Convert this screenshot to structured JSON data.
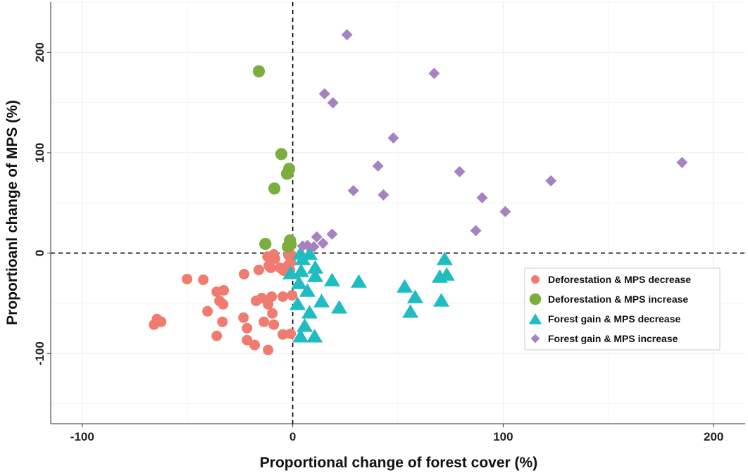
{
  "chart_data": {
    "type": "scatter",
    "xlabel": "Proportional change of forest cover (%)",
    "ylabel": "Proportioanl change of MPS (%)",
    "xlim": [
      -115,
      215
    ],
    "ylim": [
      -170,
      250
    ],
    "xticks": [
      -100,
      0,
      100,
      200
    ],
    "yticks": [
      -100,
      0,
      100,
      200
    ],
    "xtick_labels": [
      "-100",
      "0",
      "100",
      "200"
    ],
    "ytick_labels": [
      "-100",
      "0",
      "100",
      "200"
    ],
    "grid": true,
    "reference_lines": {
      "x": 0,
      "y": 0,
      "style": "dashed"
    },
    "legend_position": "right",
    "series": [
      {
        "name": "Deforestation & MPS decrease",
        "marker": "circle",
        "color": "#F07B70",
        "points": [
          [
            -50.2,
            -25.9
          ],
          [
            -42.5,
            -26.6
          ],
          [
            -36.1,
            -38.5
          ],
          [
            -32.8,
            -37.1
          ],
          [
            -34.8,
            -47.6
          ],
          [
            -33.1,
            -51
          ],
          [
            -40.5,
            -58
          ],
          [
            -64.5,
            -65.7
          ],
          [
            -65.9,
            -71.3
          ],
          [
            -62.5,
            -68.5
          ],
          [
            -33.4,
            -68.5
          ],
          [
            -36.1,
            -82.5
          ],
          [
            -23.4,
            -64.3
          ],
          [
            -21.7,
            -74.8
          ],
          [
            -21.7,
            -86.7
          ],
          [
            -18.1,
            -91.6
          ],
          [
            -11.7,
            -96.5
          ],
          [
            -13.7,
            -68.5
          ],
          [
            -9,
            -71.3
          ],
          [
            -9.7,
            -60.1
          ],
          [
            -11.7,
            -51
          ],
          [
            -17.4,
            -47.6
          ],
          [
            -14.7,
            -44.8
          ],
          [
            -10,
            -43.4
          ],
          [
            -4.7,
            -43.4
          ],
          [
            -0.3,
            -42
          ],
          [
            -4.7,
            -81.1
          ],
          [
            -1,
            -80.4
          ],
          [
            -23.1,
            -21
          ],
          [
            -16.1,
            -16.8
          ],
          [
            -12,
            -3.5
          ],
          [
            -9,
            -1.4
          ],
          [
            -8.4,
            -5.6
          ],
          [
            -11.4,
            -12.6
          ],
          [
            -10.4,
            -14.7
          ],
          [
            -6,
            -14.7
          ],
          [
            -4.3,
            -17.5
          ],
          [
            -2.3,
            -12.6
          ],
          [
            -1.3,
            -16.8
          ],
          [
            -2,
            -2.1
          ],
          [
            -0.3,
            -2.8
          ],
          [
            -1,
            -9.1
          ]
        ]
      },
      {
        "name": "Deforestation & MPS increase",
        "marker": "circle",
        "color": "#7CAE3E",
        "points": [
          [
            -16.1,
            181.1
          ],
          [
            -5.4,
            98.6
          ],
          [
            -1.7,
            83.9
          ],
          [
            -2.7,
            79
          ],
          [
            -8.7,
            64.3
          ],
          [
            -13,
            9.1
          ],
          [
            -1.3,
            12.6
          ],
          [
            -2.3,
            6.3
          ],
          [
            -1,
            8.4
          ]
        ]
      },
      {
        "name": "Forest gain & MPS decrease",
        "marker": "triangle",
        "color": "#1FBDC2",
        "points": [
          [
            3.7,
            -0.7
          ],
          [
            8,
            -1
          ],
          [
            4.7,
            -6.3
          ],
          [
            10.7,
            -14.7
          ],
          [
            4,
            -18.2
          ],
          [
            10.7,
            -23.1
          ],
          [
            18.7,
            -27.3
          ],
          [
            31.4,
            -28.7
          ],
          [
            3,
            -30.1
          ],
          [
            7,
            -37.8
          ],
          [
            13.7,
            -48.3
          ],
          [
            22.1,
            -54.5
          ],
          [
            2.3,
            -51
          ],
          [
            8,
            -59.4
          ],
          [
            5.7,
            -72.7
          ],
          [
            3.7,
            -83.2
          ],
          [
            10.4,
            -83.2
          ],
          [
            72.2,
            -6.3
          ],
          [
            69.9,
            -23.8
          ],
          [
            73.2,
            -21.7
          ],
          [
            53.2,
            -33.6
          ],
          [
            58.2,
            -44.1
          ],
          [
            70.6,
            -47.6
          ],
          [
            55.9,
            -58.7
          ],
          [
            -1,
            -20.3
          ]
        ]
      },
      {
        "name": "Forest gain & MPS increase",
        "marker": "diamond",
        "color": "#A682C2",
        "points": [
          [
            25.8,
            217.5
          ],
          [
            67.2,
            179
          ],
          [
            15.1,
            158.7
          ],
          [
            19.1,
            149.7
          ],
          [
            47.8,
            114.7
          ],
          [
            40.5,
            86.7
          ],
          [
            79.3,
            81.1
          ],
          [
            43.1,
            58
          ],
          [
            28.8,
            62.2
          ],
          [
            90,
            55.2
          ],
          [
            122.7,
            72
          ],
          [
            185,
            90.2
          ],
          [
            101,
            41.3
          ],
          [
            87,
            22.4
          ],
          [
            18.7,
            18.9
          ],
          [
            11.4,
            16.1
          ],
          [
            14.4,
            9.8
          ],
          [
            10,
            6.3
          ],
          [
            4.7,
            7
          ],
          [
            7,
            7.7
          ]
        ]
      }
    ]
  }
}
